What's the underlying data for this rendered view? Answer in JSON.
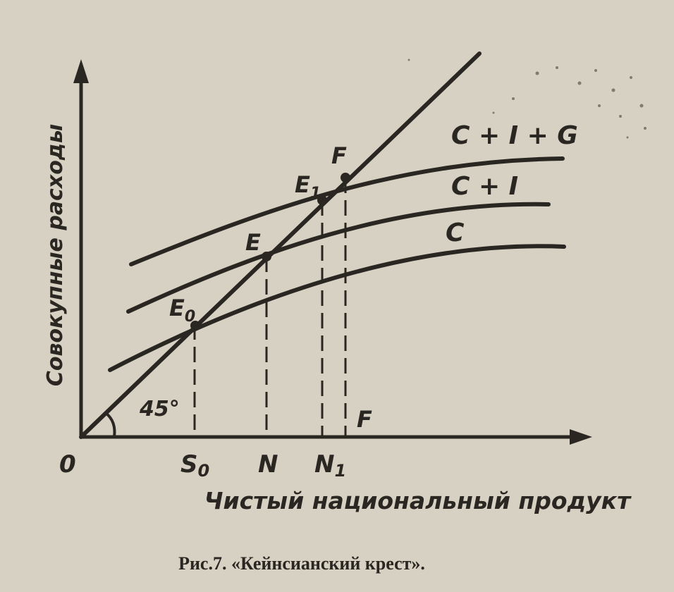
{
  "axes": {
    "y_label": "Совокупные расходы",
    "x_label": "Чистый национальный продукт",
    "origin_label": "0",
    "angle_label": "45°"
  },
  "curves": {
    "c_label": "C",
    "ci_label": "C + I",
    "cig_label": "C + I + G"
  },
  "points": {
    "e0_label": "E",
    "e0_sub": "0",
    "e_label": "E",
    "e1_label": "E",
    "e1_sub": "1",
    "f_top_label": "F",
    "f_bottom_label": "F"
  },
  "x_ticks": {
    "s0_label": "S",
    "s0_sub": "0",
    "n_label": "N",
    "n1_label": "N",
    "n1_sub": "1"
  },
  "caption": "Рис.7. «Кейнсианский крест»."
}
